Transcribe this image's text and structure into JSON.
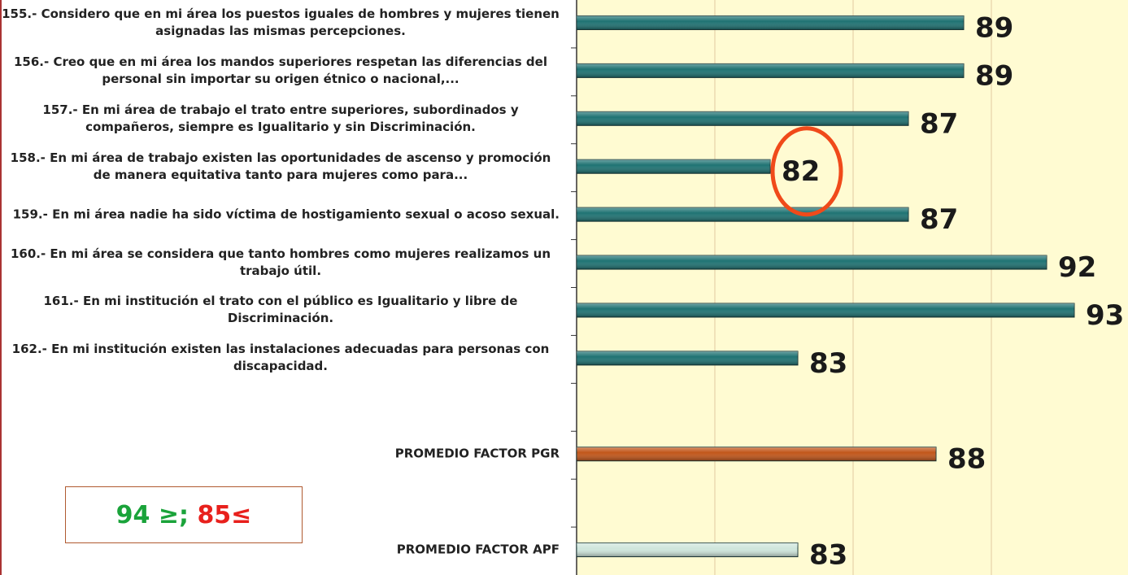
{
  "chart_data": {
    "type": "barh",
    "categories": [
      "155.- Considero que en mi área los puestos iguales de hombres y mujeres tienen asignadas las mismas percepciones.",
      "156.- Creo que en mi área los mandos superiores respetan las diferencias del personal sin importar su origen étnico o nacional,...",
      "157.- En mi área de trabajo el trato entre superiores, subordinados y compañeros, siempre es Igualitario y sin Discriminación.",
      "158.- En mi área de trabajo existen las oportunidades de ascenso y promoción de manera equitativa tanto para mujeres como para...",
      "159.- En mi área nadie ha sido víctima de hostigamiento sexual o acoso sexual.",
      "160.- En mi área se considera que tanto hombres como mujeres realizamos un trabajo útil.",
      "161.- En mi institución el trato con el público es Igualitario y libre de Discriminación.",
      "162.- En mi institución existen las instalaciones adecuadas para personas con discapacidad.",
      null,
      "PROMEDIO FACTOR PGR",
      null,
      "PROMEDIO FACTOR APF"
    ],
    "values": [
      89,
      89,
      87,
      82,
      87,
      92,
      93,
      83,
      null,
      88,
      null,
      83
    ],
    "colors": [
      "#1f7373",
      "#1f7373",
      "#1f7373",
      "#1f7373",
      "#1f7373",
      "#1f7373",
      "#1f7373",
      "#1f7373",
      null,
      "#c2561a",
      null,
      "#cfe6dc"
    ],
    "xlim": [
      75,
      95
    ],
    "xticks": [
      80,
      85,
      90
    ],
    "grid": true,
    "highlight_index": 3,
    "threshold_box": [
      "94 ≥;",
      "85≤"
    ]
  }
}
